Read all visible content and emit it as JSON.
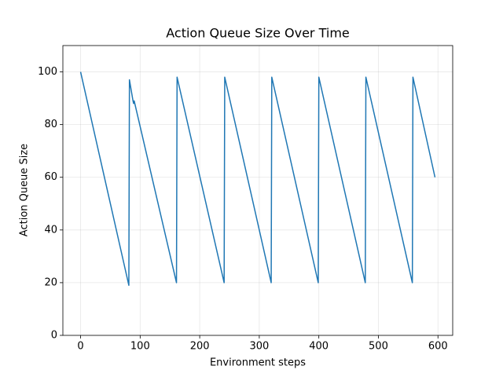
{
  "chart_data": {
    "type": "line",
    "title": "Action Queue Size Over Time",
    "x_label": "Environment steps",
    "y_label": "Action Queue Size",
    "x": [
      0,
      81,
      82,
      88,
      89,
      90,
      91,
      161,
      162,
      241,
      242,
      320,
      321,
      399,
      400,
      478,
      479,
      557,
      558,
      595
    ],
    "values": [
      100,
      19,
      97,
      89,
      88,
      89,
      88,
      20,
      98,
      20,
      98,
      20,
      98,
      20,
      98,
      20,
      98,
      20,
      98,
      60
    ],
    "color": "#1f77b4",
    "xlim": [
      -29.75,
      624.75
    ],
    "xticks": [
      0,
      100,
      200,
      300,
      400,
      500,
      600
    ],
    "ylim": [
      0,
      110
    ],
    "yticks": [
      0,
      20,
      40,
      60,
      80,
      100
    ],
    "grid": true
  }
}
